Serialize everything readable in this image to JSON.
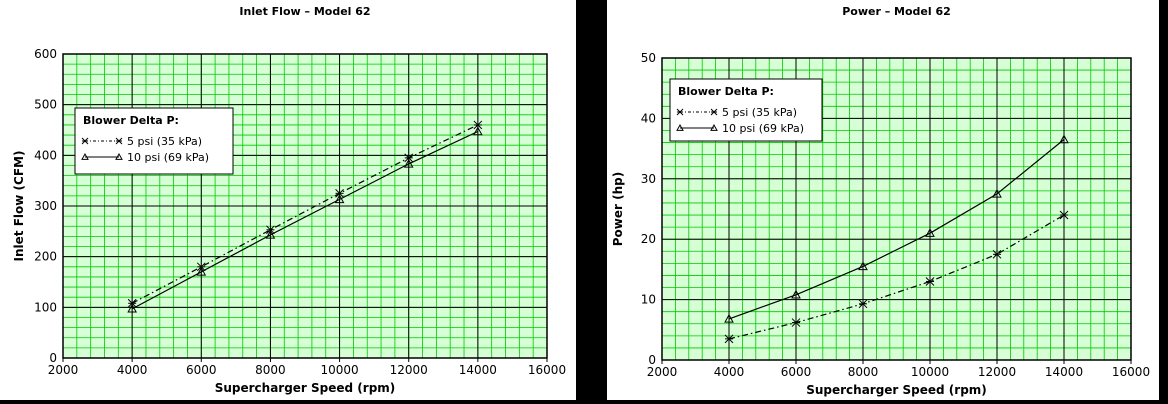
{
  "chart_data": [
    {
      "type": "line",
      "title": "Inlet Flow – Model 62",
      "xlabel": "Supercharger Speed (rpm)",
      "ylabel": "Inlet Flow (CFM)",
      "xlim": [
        2000,
        16000
      ],
      "ylim": [
        0,
        600
      ],
      "xticks": [
        2000,
        4000,
        6000,
        8000,
        10000,
        12000,
        14000,
        16000
      ],
      "yticks": [
        0,
        100,
        200,
        300,
        400,
        500,
        600
      ],
      "grid": true,
      "grid_color": "#00c800",
      "plot_bg": "#d6ffd6",
      "legend_title": "Blower Delta P:",
      "legend_position": "top-left",
      "x": [
        4000,
        6000,
        8000,
        10000,
        12000,
        14000
      ],
      "series": [
        {
          "name": "5 psi (35 kPa)",
          "marker": "x",
          "dash": "dash-dot",
          "values": [
            108,
            180,
            253,
            325,
            395,
            460
          ]
        },
        {
          "name": "10 psi (69 kPa)",
          "marker": "triangle",
          "dash": "solid",
          "values": [
            97,
            170,
            243,
            313,
            383,
            447
          ]
        }
      ]
    },
    {
      "type": "line",
      "title": "Power – Model 62",
      "xlabel": "Supercharger Speed (rpm)",
      "ylabel": "Power (hp)",
      "xlim": [
        2000,
        16000
      ],
      "ylim": [
        0,
        50
      ],
      "xticks": [
        2000,
        4000,
        6000,
        8000,
        10000,
        12000,
        14000,
        16000
      ],
      "yticks": [
        0,
        10,
        20,
        30,
        40,
        50
      ],
      "grid": true,
      "grid_color": "#00c800",
      "plot_bg": "#d6ffd6",
      "legend_title": "Blower Delta P:",
      "legend_position": "top-left",
      "x": [
        4000,
        6000,
        8000,
        10000,
        12000,
        14000
      ],
      "series": [
        {
          "name": "5 psi (35 kPa)",
          "marker": "x",
          "dash": "dash-dot",
          "values": [
            3.5,
            6.2,
            9.3,
            13.0,
            17.5,
            24.0
          ]
        },
        {
          "name": "10 psi (69 kPa)",
          "marker": "triangle",
          "dash": "solid",
          "values": [
            6.8,
            10.8,
            15.5,
            21.0,
            27.5,
            36.5
          ]
        }
      ]
    }
  ]
}
